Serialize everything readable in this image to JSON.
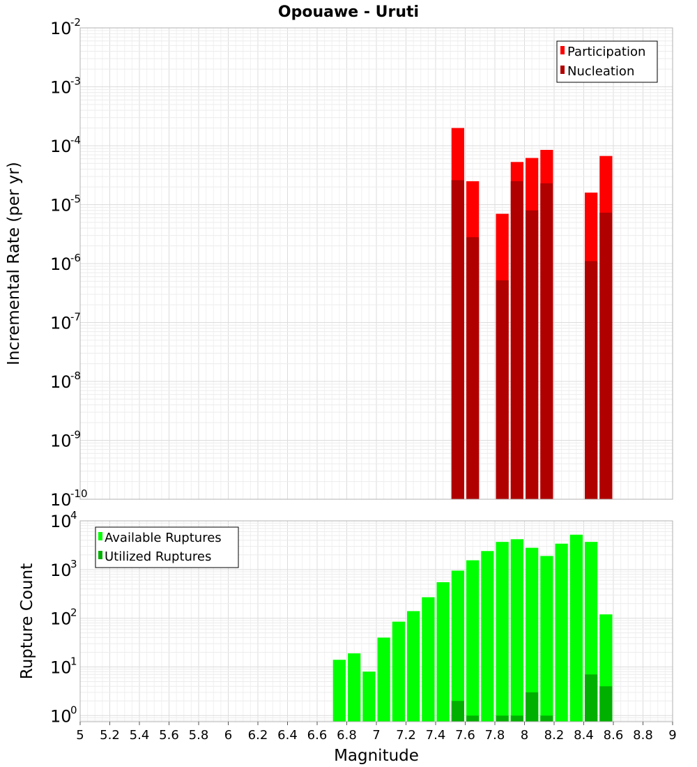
{
  "chart_data": [
    {
      "type": "bar",
      "title": "Opouawe - Uruti",
      "xlabel": "Magnitude",
      "ylabel": "Incremental Rate (per yr)",
      "yscale": "log",
      "xlim": [
        5,
        9
      ],
      "ylim": [
        1e-10,
        0.01
      ],
      "bin_width": 0.1,
      "y_tick_exponents": [
        -10,
        -9,
        -8,
        -7,
        -6,
        -5,
        -4,
        -3,
        -2
      ],
      "grid": true,
      "legend_position": "top-right",
      "series": [
        {
          "name": "Participation",
          "color": "#ff0000",
          "x": [
            7.55,
            7.65,
            7.85,
            7.95,
            8.05,
            8.15,
            8.45,
            8.55
          ],
          "values": [
            0.0002,
            2.5e-05,
            7e-06,
            5.3e-05,
            6.2e-05,
            8.5e-05,
            1.6e-05,
            6.7e-05
          ]
        },
        {
          "name": "Nucleation",
          "color": "#b00000",
          "x": [
            7.55,
            7.65,
            7.85,
            7.95,
            8.05,
            8.15,
            8.45,
            8.55
          ],
          "values": [
            2.6e-05,
            2.8e-06,
            5.2e-07,
            2.5e-05,
            8e-06,
            2.3e-05,
            1.1e-06,
            7.3e-06
          ]
        }
      ]
    },
    {
      "type": "bar",
      "xlabel": "Magnitude",
      "ylabel": "Rupture Count",
      "yscale": "log",
      "xlim": [
        5,
        9
      ],
      "ylim": [
        0.75,
        10000
      ],
      "bin_width": 0.1,
      "y_tick_exponents": [
        0,
        1,
        2,
        3,
        4
      ],
      "x_ticks": [
        "5",
        "5.2",
        "5.4",
        "5.6",
        "5.8",
        "6",
        "6.2",
        "6.4",
        "6.6",
        "6.8",
        "7",
        "7.2",
        "7.4",
        "7.6",
        "7.8",
        "8",
        "8.2",
        "8.4",
        "8.6",
        "8.8",
        "9"
      ],
      "grid": true,
      "legend_position": "top-left",
      "series": [
        {
          "name": "Available Ruptures",
          "color": "#00ff00",
          "x": [
            6.75,
            6.85,
            6.95,
            7.05,
            7.15,
            7.25,
            7.35,
            7.45,
            7.55,
            7.65,
            7.75,
            7.85,
            7.95,
            8.05,
            8.15,
            8.25,
            8.35,
            8.45,
            8.55
          ],
          "values": [
            14,
            19,
            8,
            40,
            85,
            140,
            270,
            550,
            950,
            1550,
            2400,
            3700,
            4200,
            2800,
            1900,
            3400,
            5200,
            3700,
            120
          ]
        },
        {
          "name": "Utilized Ruptures",
          "color": "#00b000",
          "x": [
            7.55,
            7.65,
            7.85,
            7.95,
            8.05,
            8.15,
            8.45,
            8.55
          ],
          "values": [
            2,
            1,
            1,
            1,
            3,
            1,
            7,
            4
          ]
        }
      ]
    }
  ]
}
